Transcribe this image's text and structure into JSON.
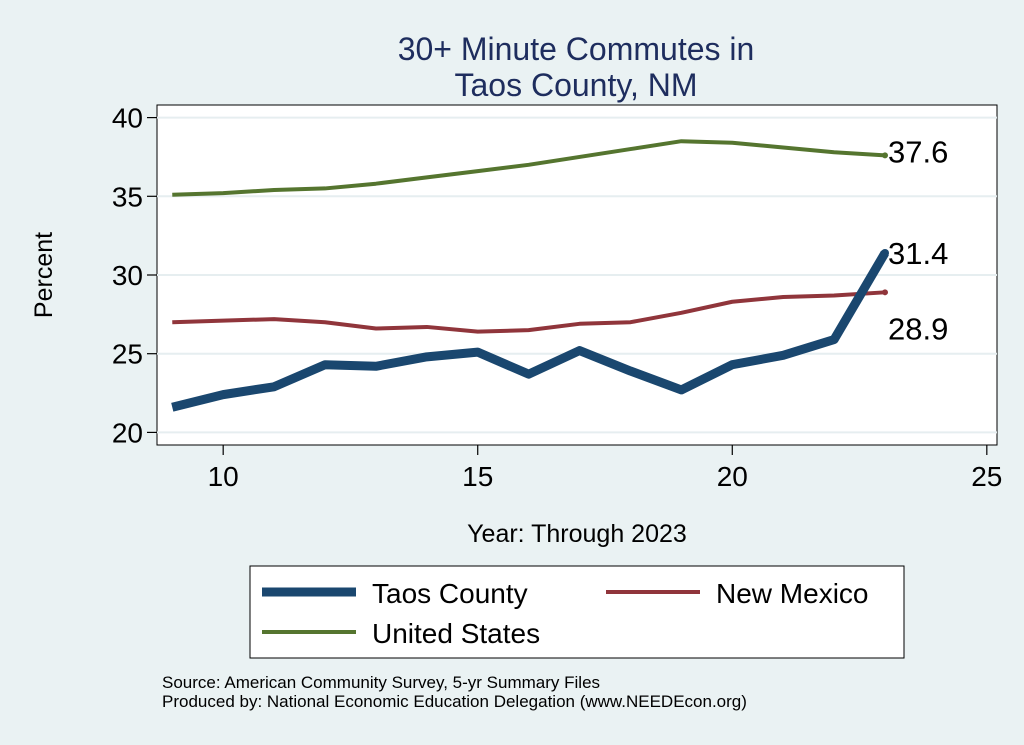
{
  "chart_data": {
    "type": "line",
    "title_lines": [
      "30+ Minute Commutes in",
      "Taos County, NM"
    ],
    "xlabel": "Year: Through 2023",
    "ylabel": "Percent",
    "xlim": [
      8.7,
      25.2
    ],
    "ylim": [
      19.2,
      40.8
    ],
    "xticks": [
      10,
      15,
      20,
      25
    ],
    "yticks": [
      20,
      25,
      30,
      35,
      40
    ],
    "grid": true,
    "x": [
      9,
      10,
      11,
      12,
      13,
      14,
      15,
      16,
      17,
      18,
      19,
      20,
      21,
      22,
      23
    ],
    "series": [
      {
        "name": "Taos County",
        "color": "#1a476f",
        "width": 9,
        "values": [
          21.6,
          22.4,
          22.9,
          24.3,
          24.2,
          24.8,
          25.1,
          23.7,
          25.2,
          23.9,
          22.7,
          24.3,
          24.9,
          25.9,
          31.4
        ],
        "end_label": "31.4"
      },
      {
        "name": "New Mexico",
        "color": "#90353b",
        "width": 4,
        "values": [
          27.0,
          27.1,
          27.2,
          27.0,
          26.6,
          26.7,
          26.4,
          26.5,
          26.9,
          27.0,
          27.6,
          28.3,
          28.6,
          28.7,
          28.9
        ],
        "end_label": "28.9"
      },
      {
        "name": "United States",
        "color": "#55752f",
        "width": 4,
        "values": [
          35.1,
          35.2,
          35.4,
          35.5,
          35.8,
          36.2,
          36.6,
          37.0,
          37.5,
          38.0,
          38.5,
          38.4,
          38.1,
          37.8,
          37.6
        ],
        "end_label": "37.6"
      }
    ],
    "legend_position": "bottom"
  },
  "source_note": "Source: American Community Survey, 5-yr Summary Files",
  "produced_note": "Produced by: National Economic Education Delegation (www.NEEDEcon.org)"
}
